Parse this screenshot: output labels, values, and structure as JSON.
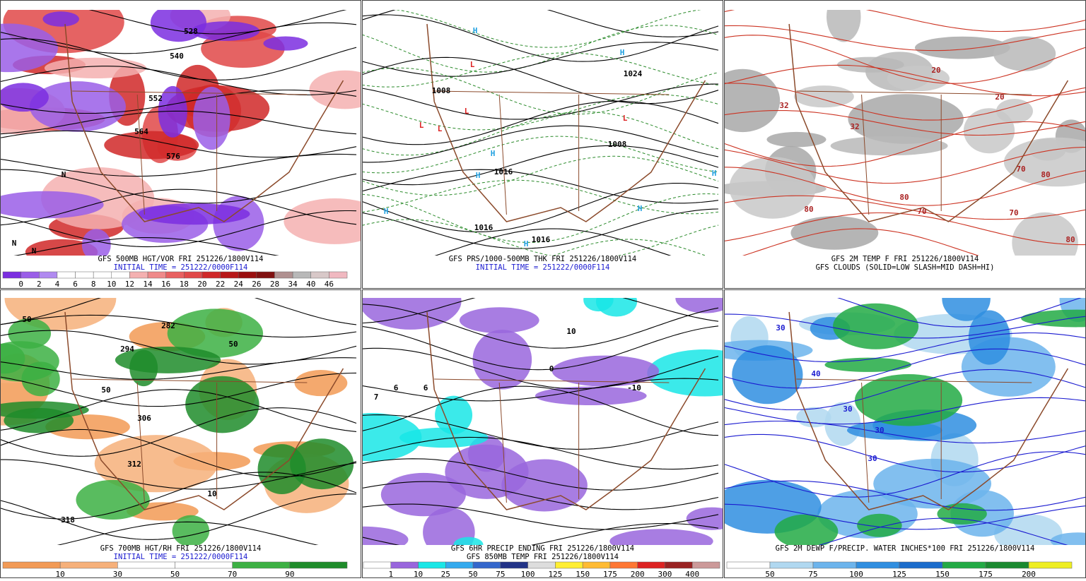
{
  "panels": [
    {
      "captions": [
        "GFS 500MB HGT/VOR FRI 251226/1800V114",
        "INITIAL TIME = 251222/0000F114"
      ],
      "caption_colors": [
        "#000000",
        "#1a1ad0"
      ],
      "colorbar_labels": [
        0,
        2,
        4,
        6,
        8,
        10,
        12,
        14,
        16,
        18,
        20,
        22,
        24,
        26,
        28,
        34,
        40,
        46
      ],
      "colorbar_colors": [
        "#7b2ee0",
        "#9a5ee8",
        "#b08af0",
        "#ffffff",
        "#ffffff",
        "#ffffff",
        "#ffffff",
        "#f4b0b0",
        "#ef8a8a",
        "#e86060",
        "#e04848",
        "#d02828",
        "#b81818",
        "#9a0e0e",
        "#801010",
        "#b09090",
        "#b8b8b8",
        "#d8c8c8",
        "#f0b8c0"
      ],
      "map_labels": [
        "528",
        "540",
        "552",
        "564",
        "576",
        "N",
        "N",
        "N"
      ]
    },
    {
      "captions": [
        "GFS PRS/1000-500MB THK FRI 251226/1800V114",
        "INITIAL TIME = 251222/0000F114"
      ],
      "caption_colors": [
        "#000000",
        "#1a1ad0"
      ],
      "map_labels": [
        "H",
        "H",
        "H",
        "H",
        "H",
        "H",
        "H",
        "H",
        "L",
        "L",
        "L",
        "L",
        "L",
        "1008",
        "1016",
        "1016",
        "1016",
        "1024",
        "1008"
      ]
    },
    {
      "captions": [
        "GFS 2M TEMP F FRI 251226/1800V114",
        "GFS CLOUDS (SOLID=LOW SLASH=MID DASH=HI)"
      ],
      "caption_colors": [
        "#000000",
        "#000000"
      ],
      "map_labels": [
        "32",
        "32",
        "20",
        "20",
        "70",
        "80",
        "80",
        "70",
        "80",
        "70",
        "80"
      ]
    },
    {
      "captions": [
        "GFS 700MB HGT/RH FRI 251226/1800V114",
        "INITIAL TIME = 251222/0000F114"
      ],
      "caption_colors": [
        "#000000",
        "#1a1ad0"
      ],
      "colorbar_labels": [
        10,
        30,
        50,
        70,
        90
      ],
      "colorbar_colors": [
        "#f29a55",
        "#f6b07a",
        "#ffffff",
        "#ffffff",
        "#3cb043",
        "#1e8c2a"
      ],
      "map_labels": [
        "282",
        "294",
        "306",
        "312",
        "318",
        "50",
        "50",
        "50",
        "10"
      ]
    },
    {
      "captions": [
        "GFS 6HR PRECIP ENDING FRI 251226/1800V114",
        "GFS 850MB TEMP FRI 251226/1800V114"
      ],
      "caption_colors": [
        "#000000",
        "#000000"
      ],
      "colorbar_labels": [
        1,
        10,
        25,
        50,
        75,
        100,
        125,
        150,
        175,
        200,
        300,
        400
      ],
      "colorbar_colors": [
        "#ffffff",
        "#9966dd",
        "#19e6e6",
        "#33aaee",
        "#3366cc",
        "#223388",
        "#dddddd",
        "#ffee33",
        "#ffbb33",
        "#ff7733",
        "#dd2222",
        "#992222",
        "#cc9999"
      ],
      "map_labels": [
        "0",
        "10",
        "-10",
        "6",
        "6",
        "7"
      ]
    },
    {
      "captions": [
        "GFS 2M DEWP F/PRECIP. WATER INCHES*100 FRI 251226/1800V114"
      ],
      "caption_colors": [
        "#000000"
      ],
      "colorbar_labels": [
        50,
        75,
        100,
        125,
        150,
        175,
        200
      ],
      "colorbar_colors": [
        "#ffffff",
        "#b0d8f0",
        "#6cb4ec",
        "#2f8ee0",
        "#1a6ccc",
        "#22aa44",
        "#1a8a30",
        "#eeee22"
      ],
      "map_labels": [
        "30",
        "30",
        "30",
        "30",
        "40"
      ]
    }
  ]
}
